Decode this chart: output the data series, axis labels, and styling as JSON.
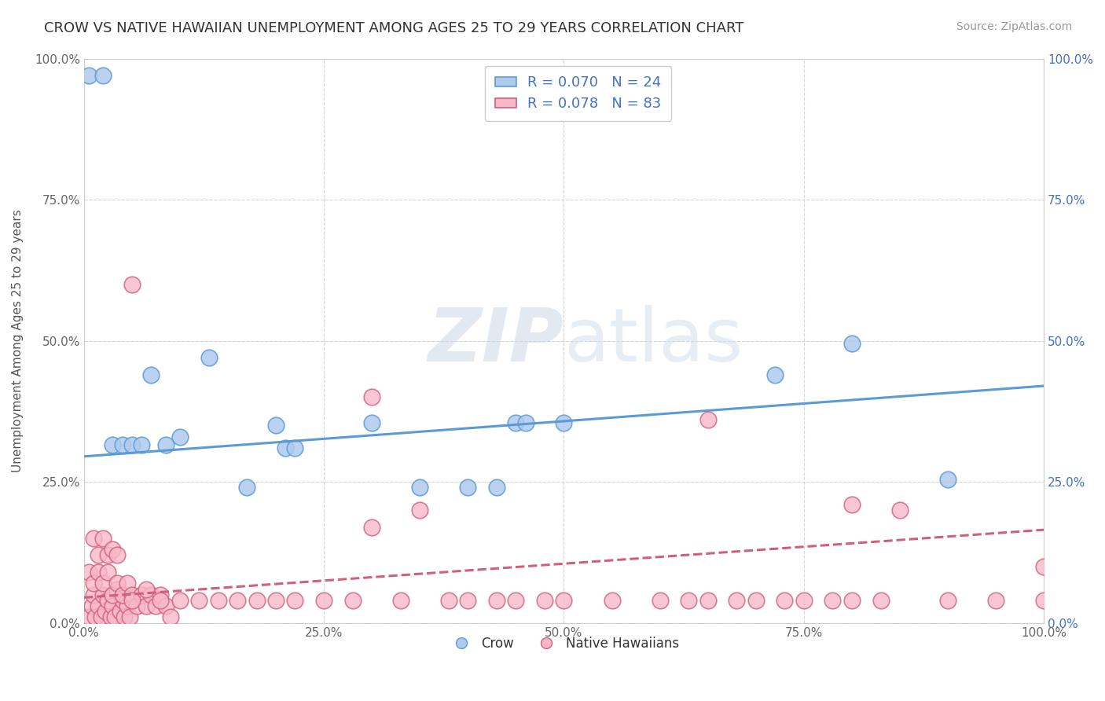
{
  "title": "CROW VS NATIVE HAWAIIAN UNEMPLOYMENT AMONG AGES 25 TO 29 YEARS CORRELATION CHART",
  "source": "Source: ZipAtlas.com",
  "ylabel": "Unemployment Among Ages 25 to 29 years",
  "xlim": [
    0,
    1.0
  ],
  "ylim": [
    0,
    1.0
  ],
  "crow_R": 0.07,
  "crow_N": 24,
  "native_hawaiian_R": 0.078,
  "native_hawaiian_N": 83,
  "crow_color": "#aecbee",
  "crow_line_color": "#5b9bd5",
  "native_hawaiian_color": "#f8b8c8",
  "native_hawaiian_line_color": "#d0607a",
  "background_color": "#ffffff",
  "watermark_color": "#c8d4e4",
  "crow_x": [
    0.005,
    0.02,
    0.03,
    0.04,
    0.05,
    0.06,
    0.07,
    0.085,
    0.1,
    0.13,
    0.17,
    0.2,
    0.21,
    0.22,
    0.3,
    0.35,
    0.4,
    0.43,
    0.45,
    0.46,
    0.5,
    0.72,
    0.8,
    0.9
  ],
  "crow_y": [
    0.97,
    0.97,
    0.315,
    0.315,
    0.315,
    0.315,
    0.44,
    0.315,
    0.33,
    0.47,
    0.24,
    0.35,
    0.31,
    0.31,
    0.355,
    0.24,
    0.24,
    0.24,
    0.355,
    0.355,
    0.355,
    0.44,
    0.495,
    0.255
  ],
  "nh_x": [
    0.005,
    0.008,
    0.01,
    0.012,
    0.015,
    0.018,
    0.02,
    0.022,
    0.025,
    0.028,
    0.03,
    0.032,
    0.035,
    0.038,
    0.04,
    0.042,
    0.045,
    0.048,
    0.005,
    0.01,
    0.015,
    0.02,
    0.025,
    0.03,
    0.035,
    0.04,
    0.045,
    0.05,
    0.055,
    0.06,
    0.065,
    0.07,
    0.075,
    0.08,
    0.085,
    0.09,
    0.01,
    0.015,
    0.02,
    0.025,
    0.03,
    0.035,
    0.05,
    0.065,
    0.08,
    0.1,
    0.12,
    0.14,
    0.16,
    0.18,
    0.2,
    0.22,
    0.25,
    0.28,
    0.3,
    0.33,
    0.35,
    0.38,
    0.4,
    0.43,
    0.45,
    0.48,
    0.5,
    0.55,
    0.6,
    0.63,
    0.65,
    0.68,
    0.7,
    0.73,
    0.75,
    0.78,
    0.8,
    0.83,
    0.05,
    0.3,
    0.65,
    0.8,
    0.85,
    0.9,
    0.95,
    1.0,
    1.0
  ],
  "nh_y": [
    0.01,
    0.03,
    0.05,
    0.01,
    0.03,
    0.01,
    0.05,
    0.02,
    0.04,
    0.01,
    0.03,
    0.01,
    0.06,
    0.02,
    0.04,
    0.01,
    0.03,
    0.01,
    0.09,
    0.07,
    0.09,
    0.07,
    0.09,
    0.05,
    0.07,
    0.05,
    0.07,
    0.05,
    0.03,
    0.05,
    0.03,
    0.05,
    0.03,
    0.05,
    0.03,
    0.01,
    0.15,
    0.12,
    0.15,
    0.12,
    0.13,
    0.12,
    0.04,
    0.06,
    0.04,
    0.04,
    0.04,
    0.04,
    0.04,
    0.04,
    0.04,
    0.04,
    0.04,
    0.04,
    0.17,
    0.04,
    0.2,
    0.04,
    0.04,
    0.04,
    0.04,
    0.04,
    0.04,
    0.04,
    0.04,
    0.04,
    0.04,
    0.04,
    0.04,
    0.04,
    0.04,
    0.04,
    0.04,
    0.04,
    0.6,
    0.4,
    0.36,
    0.21,
    0.2,
    0.04,
    0.04,
    0.1,
    0.04
  ]
}
